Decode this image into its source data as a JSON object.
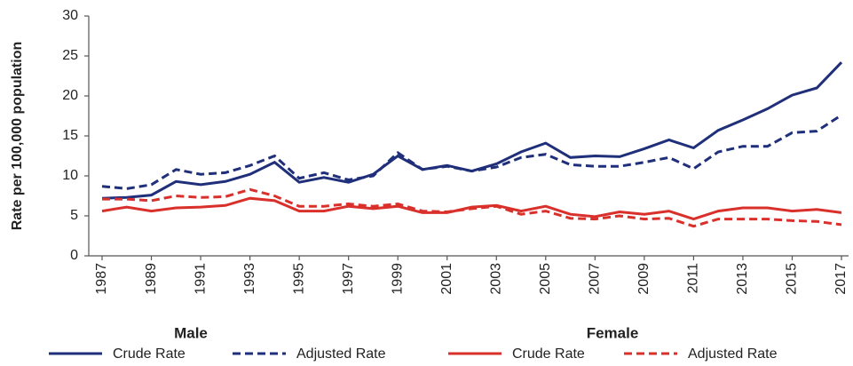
{
  "chart_data": {
    "type": "line",
    "y_label": "Rate per 100,000 population",
    "x": [
      1987,
      1988,
      1989,
      1990,
      1991,
      1992,
      1993,
      1994,
      1995,
      1996,
      1997,
      1998,
      1999,
      2000,
      2001,
      2002,
      2003,
      2004,
      2005,
      2006,
      2007,
      2008,
      2009,
      2010,
      2011,
      2012,
      2013,
      2014,
      2015,
      2016,
      2017
    ],
    "xlim": [
      1987,
      2017
    ],
    "xticks": [
      1987,
      1989,
      1991,
      1993,
      1995,
      1997,
      1999,
      2001,
      2003,
      2005,
      2007,
      2009,
      2011,
      2013,
      2015,
      2017
    ],
    "ylim": [
      0,
      30
    ],
    "yticks": [
      0,
      5,
      10,
      15,
      20,
      25,
      30
    ],
    "grid": false,
    "series": [
      {
        "name": "Crude Rate",
        "group": "Male",
        "color": "#1f2f7a",
        "line_style": "solid",
        "values": [
          7.2,
          7.3,
          7.6,
          9.3,
          8.9,
          9.3,
          10.2,
          11.7,
          9.2,
          9.8,
          9.2,
          10.2,
          12.5,
          10.8,
          11.3,
          10.6,
          11.5,
          13.0,
          14.1,
          12.3,
          12.5,
          12.4,
          13.4,
          14.5,
          13.5,
          15.7,
          17.0,
          18.4,
          20.1,
          21.0,
          24.2
        ]
      },
      {
        "name": "Adjusted Rate",
        "group": "Male",
        "color": "#1f2f7a",
        "line_style": "dashed",
        "values": [
          8.7,
          8.4,
          8.9,
          10.8,
          10.2,
          10.4,
          11.3,
          12.5,
          9.7,
          10.4,
          9.5,
          10.0,
          12.9,
          10.8,
          11.2,
          10.6,
          11.1,
          12.3,
          12.7,
          11.4,
          11.2,
          11.2,
          11.7,
          12.3,
          10.9,
          13.0,
          13.7,
          13.7,
          15.4,
          15.6,
          17.6
        ]
      },
      {
        "name": "Crude Rate",
        "group": "Female",
        "color": "#d9302b",
        "line_style": "solid",
        "values": [
          5.6,
          6.1,
          5.6,
          6.0,
          6.1,
          6.3,
          7.2,
          6.9,
          5.6,
          5.6,
          6.2,
          5.9,
          6.2,
          5.4,
          5.4,
          6.1,
          6.3,
          5.6,
          6.2,
          5.2,
          4.9,
          5.5,
          5.2,
          5.6,
          4.6,
          5.6,
          6.0,
          6.0,
          5.6,
          5.8,
          5.4
        ]
      },
      {
        "name": "Adjusted Rate",
        "group": "Female",
        "color": "#d9302b",
        "line_style": "dashed",
        "values": [
          7.1,
          7.1,
          6.9,
          7.5,
          7.3,
          7.4,
          8.3,
          7.5,
          6.2,
          6.2,
          6.5,
          6.2,
          6.5,
          5.6,
          5.5,
          5.9,
          6.2,
          5.2,
          5.6,
          4.7,
          4.6,
          5.0,
          4.6,
          4.7,
          3.7,
          4.6,
          4.6,
          4.6,
          4.4,
          4.3,
          3.9
        ]
      }
    ]
  }
}
